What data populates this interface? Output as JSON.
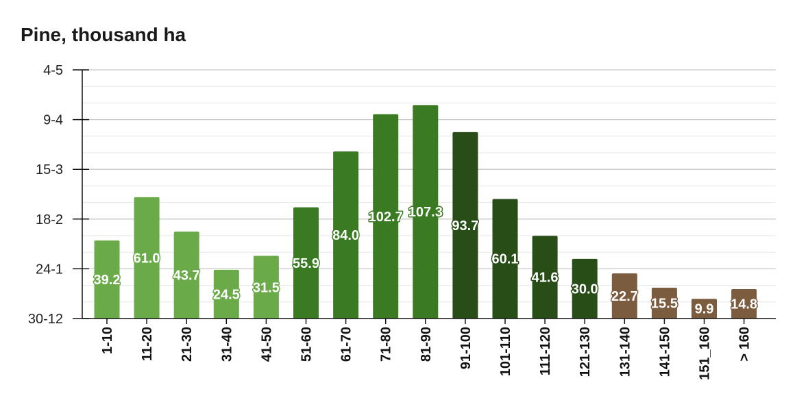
{
  "chart_data": {
    "type": "bar",
    "title": "Pine, thousand ha",
    "xlabel": "",
    "ylabel": "",
    "ylim": [
      0,
      125
    ],
    "y_ticks": [
      "4-5",
      "9-4",
      "15-3",
      "18-2",
      "24-1",
      "30-12"
    ],
    "grid": true,
    "categories": [
      "1-10",
      "11-20",
      "21-30",
      "31-40",
      "41-50",
      "51-60",
      "61-70",
      "71-80",
      "81-90",
      "91-100",
      "101-110",
      "111-120",
      "121-130",
      "131-140",
      "141-150",
      "151_160",
      "> 160"
    ],
    "values": [
      39.2,
      61.0,
      43.7,
      24.5,
      31.5,
      55.9,
      84.0,
      102.7,
      107.3,
      93.7,
      60.1,
      41.6,
      30.0,
      22.7,
      15.5,
      9.9,
      14.8
    ],
    "data_labels": [
      "39.2",
      "61.0",
      "43.7",
      "24.5",
      "31.5",
      "55.9",
      "84.0",
      "102.7",
      "107.3",
      "93.7",
      "60.1",
      "41.6",
      "30.0",
      "22.7",
      "15.5",
      "9.9",
      "14.8"
    ],
    "colors": [
      "#6aaa48",
      "#6aaa48",
      "#6aaa48",
      "#6aaa48",
      "#6aaa48",
      "#3a7a22",
      "#3a7a22",
      "#3a7a22",
      "#3a7a22",
      "#284d17",
      "#284d17",
      "#284d17",
      "#284d17",
      "#7b5c3e",
      "#7b5c3e",
      "#7b5c3e",
      "#7b5c3e"
    ]
  }
}
